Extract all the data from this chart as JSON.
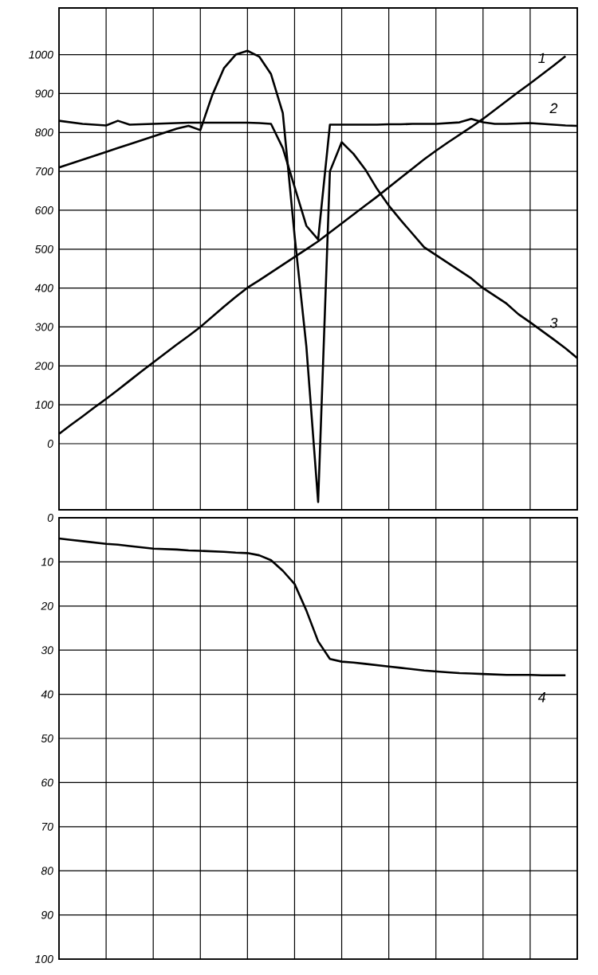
{
  "chart_data": [
    {
      "type": "line",
      "ylim": [
        -170,
        1120
      ],
      "grid": true,
      "tick_labels": "y",
      "line_style": "solid",
      "marker": "none",
      "categories": [
        null,
        null,
        null,
        null,
        null,
        null,
        null,
        null,
        null,
        null,
        null,
        null,
        null,
        null,
        null,
        null,
        null,
        null,
        null,
        null,
        null,
        null,
        null,
        null,
        null,
        null,
        null,
        null,
        null,
        null,
        null,
        null,
        null,
        null,
        null,
        null,
        null,
        null,
        null,
        null,
        null,
        null,
        null,
        null,
        null
      ],
      "yticks": [
        0,
        100,
        200,
        300,
        400,
        500,
        600,
        700,
        800,
        900,
        1000
      ],
      "series": [
        {
          "name": "1",
          "color": "#000000",
          "values": [
            25,
            48,
            70,
            93,
            115,
            138,
            162,
            186,
            209,
            232,
            255,
            277,
            300,
            326,
            352,
            377,
            401,
            420,
            440,
            460,
            480,
            500,
            520,
            543,
            566,
            589,
            612,
            635,
            659,
            683,
            707,
            731,
            753,
            774,
            794,
            814,
            835,
            858,
            881,
            904,
            926,
            949,
            972,
            996,
            null
          ]
        },
        {
          "name": "2",
          "color": "#000000",
          "values": [
            830,
            826,
            822,
            820,
            818,
            830,
            820,
            821,
            822,
            823,
            824,
            825,
            825,
            825,
            825,
            825,
            825,
            824,
            822,
            760,
            660,
            560,
            525,
            820,
            820,
            820,
            820,
            820,
            821,
            821,
            822,
            822,
            822,
            824,
            826,
            835,
            826,
            822,
            822,
            823,
            824,
            822,
            820,
            818,
            817
          ]
        },
        {
          "name": "3",
          "color": "#000000",
          "values": [
            710,
            720,
            730,
            740,
            750,
            760,
            770,
            780,
            790,
            800,
            810,
            817,
            806,
            895,
            965,
            1000,
            1010,
            995,
            950,
            850,
            535,
            250,
            -150,
            700,
            775,
            745,
            705,
            655,
            612,
            575,
            540,
            505,
            485,
            465,
            445,
            425,
            400,
            380,
            360,
            333,
            312,
            290,
            268,
            245,
            220
          ]
        }
      ]
    },
    {
      "type": "line",
      "ylim": [
        100,
        0
      ],
      "grid": true,
      "tick_labels": "y",
      "line_style": "solid",
      "marker": "none",
      "categories": [
        null,
        null,
        null,
        null,
        null,
        null,
        null,
        null,
        null,
        null,
        null,
        null,
        null,
        null,
        null,
        null,
        null,
        null,
        null,
        null,
        null,
        null,
        null,
        null,
        null,
        null,
        null,
        null,
        null,
        null,
        null,
        null,
        null,
        null,
        null,
        null,
        null,
        null,
        null,
        null,
        null,
        null,
        null,
        null,
        null
      ],
      "yticks": [
        0,
        10,
        20,
        30,
        40,
        50,
        60,
        70,
        80,
        90,
        100
      ],
      "series": [
        {
          "name": "4",
          "color": "#000000",
          "values": [
            4.7,
            5,
            5.3,
            5.6,
            5.9,
            6.1,
            6.4,
            6.7,
            7.0,
            7.1,
            7.2,
            7.4,
            7.5,
            7.6,
            7.7,
            7.9,
            8.0,
            8.5,
            9.6,
            12,
            15,
            21,
            28,
            32,
            32.6,
            32.8,
            33.1,
            33.4,
            33.7,
            34,
            34.3,
            34.6,
            34.8,
            35,
            35.2,
            35.3,
            35.4,
            35.5,
            35.6,
            35.6,
            35.6,
            35.7,
            35.7,
            35.7,
            null
          ]
        }
      ]
    }
  ]
}
